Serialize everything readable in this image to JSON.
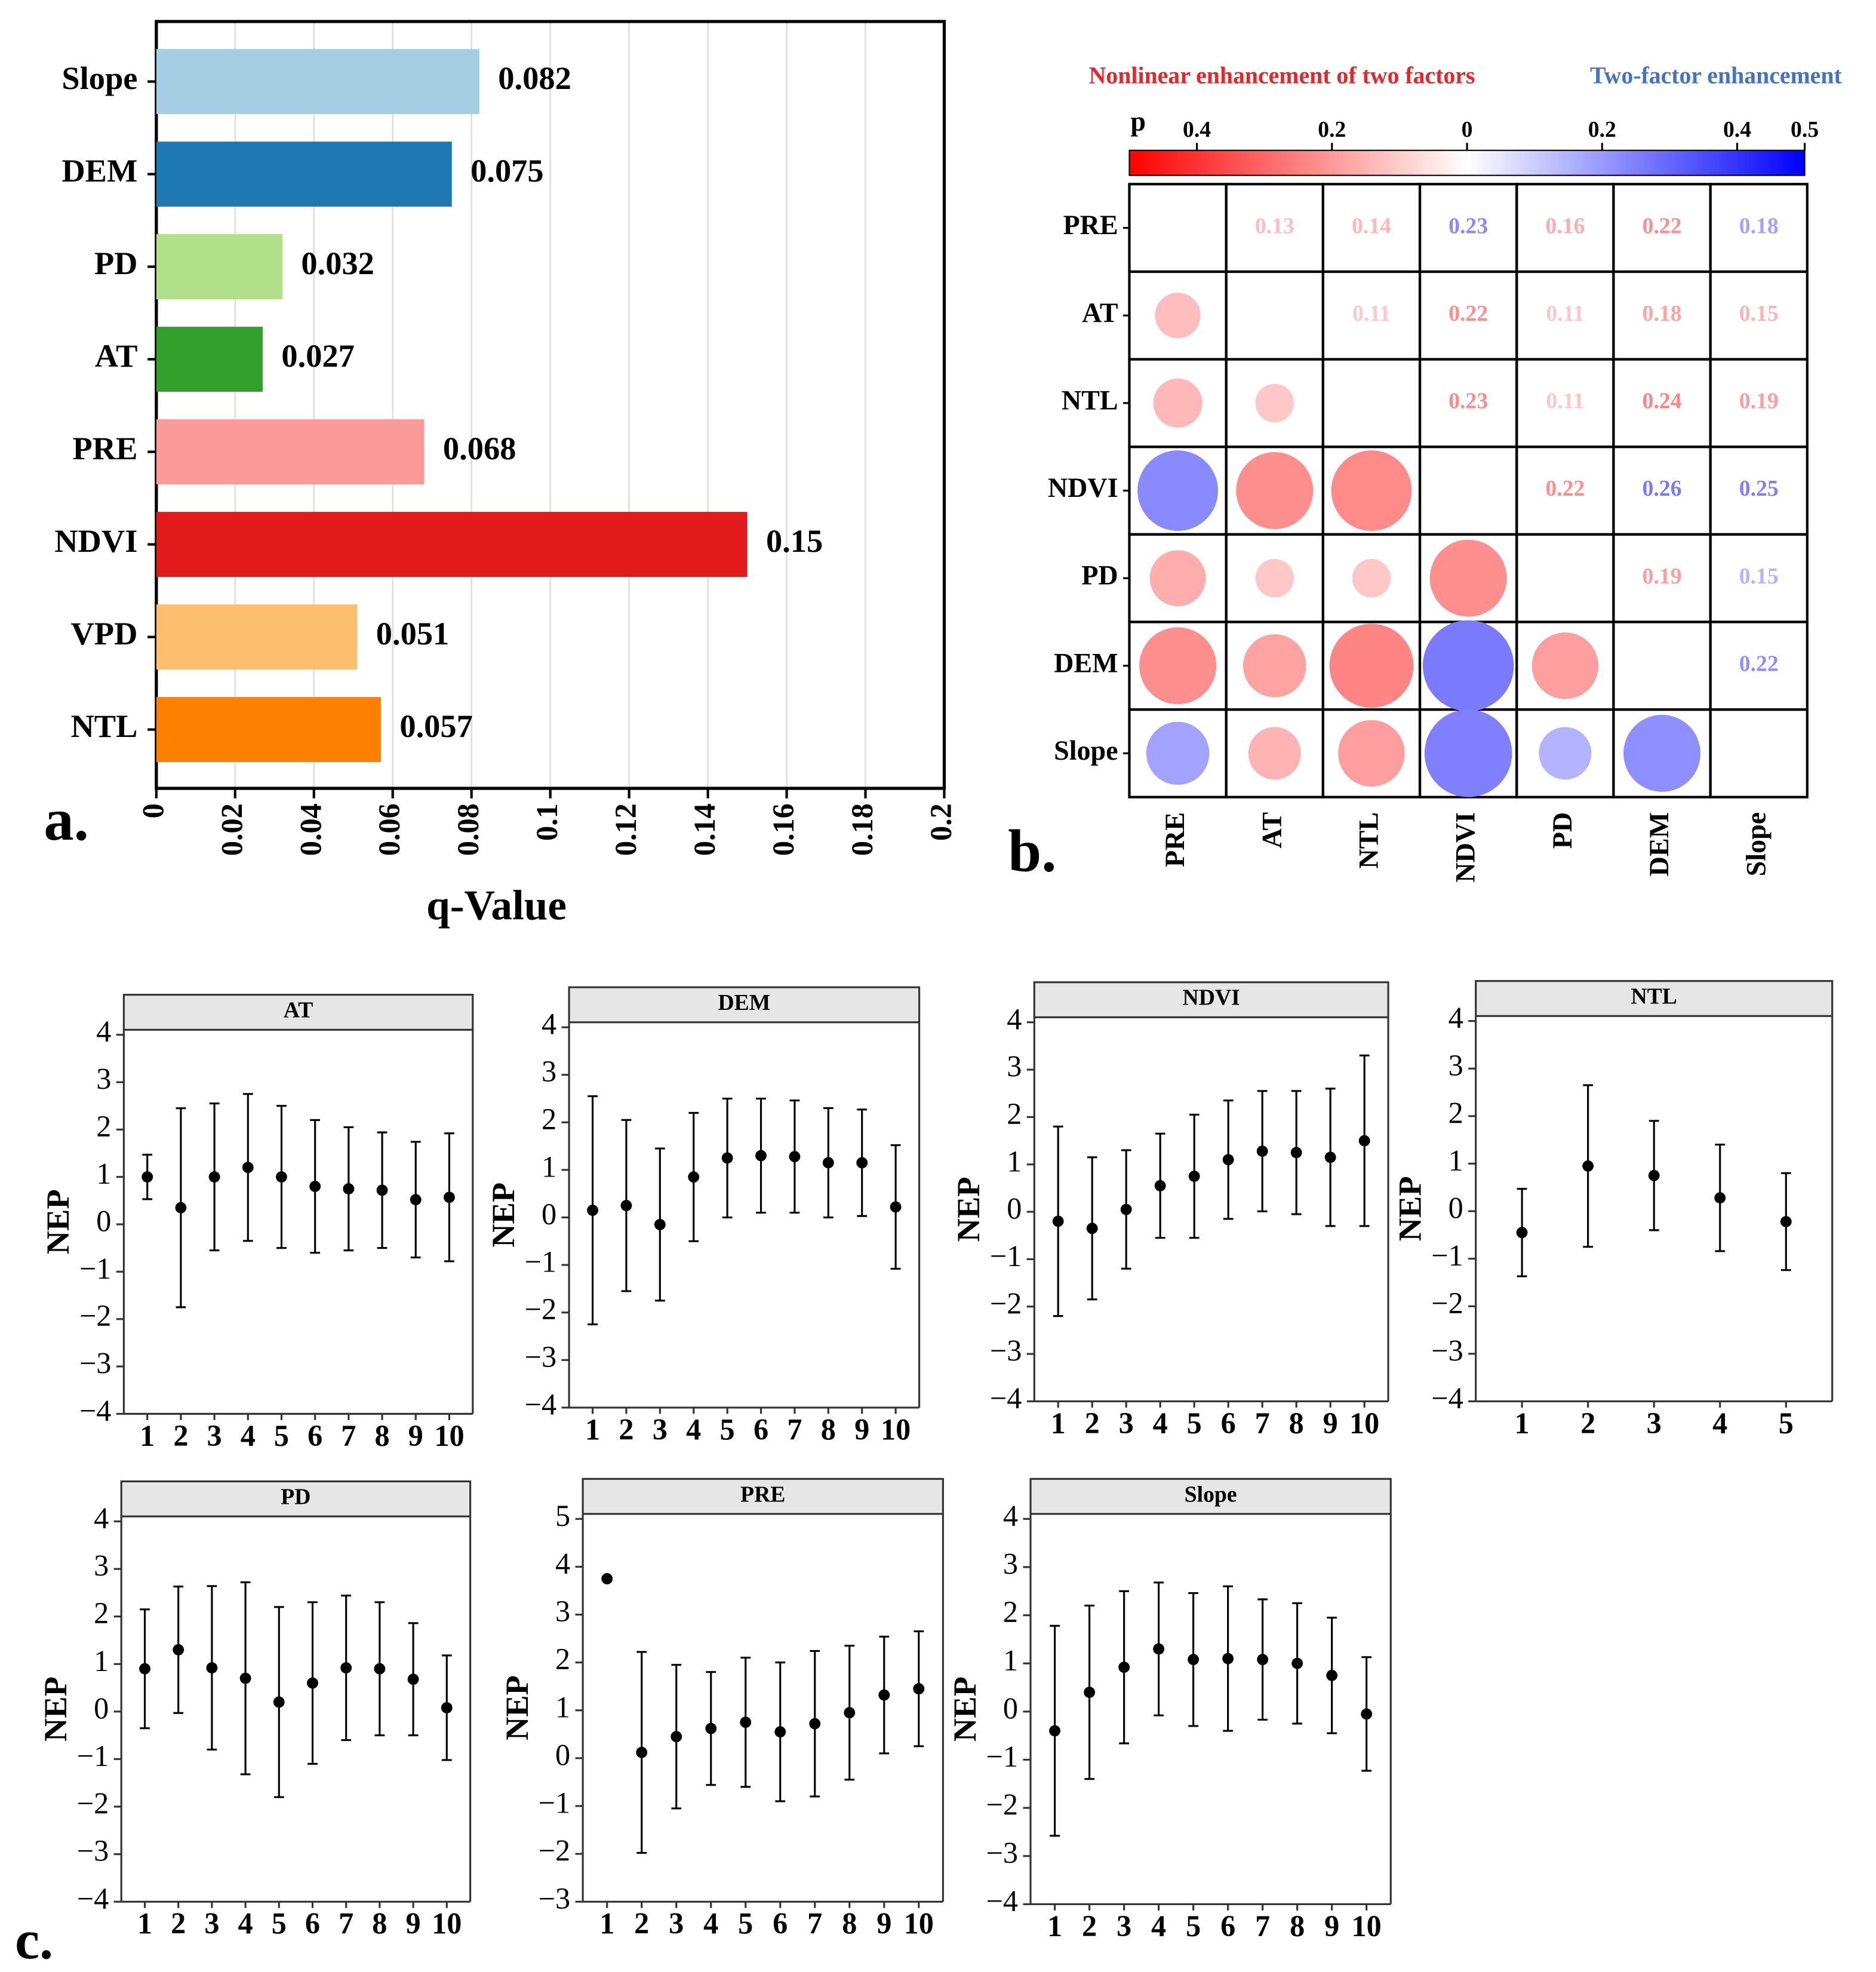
{
  "chart_data": [
    {
      "type": "bar",
      "orientation": "horizontal",
      "panel_label": "a.",
      "x_label": "q-Value",
      "categories": [
        "Slope",
        "DEM",
        "PD",
        "AT",
        "PRE",
        "NDVI",
        "VPD",
        "NTL"
      ],
      "values": [
        0.082,
        0.075,
        0.032,
        0.027,
        0.068,
        0.15,
        0.051,
        0.057
      ],
      "colors": [
        "#a6cee3",
        "#1f78b4",
        "#b2df8a",
        "#33a02c",
        "#fb9a99",
        "#e31a1c",
        "#fdbf6f",
        "#ff7f00"
      ],
      "xlim": [
        0,
        0.2
      ],
      "xticks": [
        0,
        0.02,
        0.04,
        0.06,
        0.08,
        0.1,
        0.12,
        0.14,
        0.16,
        0.18,
        0.2
      ],
      "grid": true
    },
    {
      "type": "matrix",
      "panel_label": "b.",
      "title_left": "Nonlinear enhancement of two factors",
      "title_right": "Two-factor enhancement",
      "colorbar_label": "p",
      "clim": [
        -0.5,
        0.5
      ],
      "colors": [
        "#ff0000",
        "#ffffff",
        "#0000ff"
      ],
      "cticks": [
        {
          "value": -0.4,
          "label": "0.4"
        },
        {
          "value": -0.2,
          "label": "0.2"
        },
        0,
        0.2,
        0.4,
        0.5
      ],
      "factors": [
        "PRE",
        "AT",
        "NTL",
        "NDVI",
        "PD",
        "DEM",
        "Slope"
      ],
      "values": [
        [
          null,
          -0.13,
          -0.14,
          0.23,
          -0.16,
          -0.22,
          0.18
        ],
        [
          null,
          null,
          -0.11,
          -0.22,
          -0.11,
          -0.18,
          -0.15
        ],
        [
          null,
          null,
          null,
          -0.23,
          -0.11,
          -0.24,
          -0.19
        ],
        [
          null,
          null,
          null,
          null,
          -0.22,
          0.26,
          0.25
        ],
        [
          null,
          null,
          null,
          null,
          null,
          -0.19,
          0.15
        ],
        [
          null,
          null,
          null,
          null,
          null,
          null,
          0.22
        ],
        [
          null,
          null,
          null,
          null,
          null,
          null,
          null
        ]
      ],
      "value_labels": [
        [
          null,
          "0.13",
          "0.14",
          "0.23",
          "0.16",
          "0.22",
          "0.18"
        ],
        [
          null,
          null,
          "0.11",
          "0.22",
          "0.11",
          "0.18",
          "0.15"
        ],
        [
          null,
          null,
          null,
          "0.23",
          "0.11",
          "0.24",
          "0.19"
        ],
        [
          null,
          null,
          null,
          null,
          "0.22",
          "0.26",
          "0.25"
        ],
        [
          null,
          null,
          null,
          null,
          null,
          "0.19",
          "0.15"
        ],
        [
          null,
          null,
          null,
          null,
          null,
          null,
          "0.22"
        ],
        [
          null,
          null,
          null,
          null,
          null,
          null,
          null
        ]
      ]
    },
    {
      "type": "errorbar",
      "title": "AT",
      "y_label": "NEP",
      "x": [
        1,
        2,
        3,
        4,
        5,
        6,
        7,
        8,
        9,
        10
      ],
      "xlim": [
        0.3,
        10.7
      ],
      "xticks": [
        1,
        2,
        3,
        4,
        5,
        6,
        7,
        8,
        9,
        10
      ],
      "values": [
        1.0,
        0.35,
        1.0,
        1.2,
        1.0,
        0.8,
        0.75,
        0.72,
        0.52,
        0.57
      ],
      "errors": [
        0.47,
        2.1,
        1.55,
        1.55,
        1.5,
        1.4,
        1.3,
        1.22,
        1.22,
        1.35
      ],
      "ylim": [
        -4,
        4
      ],
      "yticks": [
        {
          "value": -4,
          "label": "−4"
        },
        {
          "value": -3,
          "label": "−3"
        },
        {
          "value": -2,
          "label": "−2"
        },
        {
          "value": -1,
          "label": "−1"
        },
        0,
        1,
        2,
        3,
        4
      ]
    },
    {
      "type": "errorbar",
      "title": "DEM",
      "y_label": "NEP",
      "x": [
        1,
        2,
        3,
        4,
        5,
        6,
        7,
        8,
        9,
        10
      ],
      "xlim": [
        0.3,
        10.7
      ],
      "xticks": [
        1,
        2,
        3,
        4,
        5,
        6,
        7,
        8,
        9,
        10
      ],
      "values": [
        0.15,
        0.25,
        -0.15,
        0.85,
        1.25,
        1.3,
        1.28,
        1.15,
        1.15,
        0.22
      ],
      "errors": [
        2.4,
        1.8,
        1.6,
        1.35,
        1.25,
        1.2,
        1.18,
        1.15,
        1.12,
        1.3
      ],
      "ylim": [
        -4,
        4
      ],
      "yticks": [
        {
          "value": -4,
          "label": "−4"
        },
        {
          "value": -3,
          "label": "−3"
        },
        {
          "value": -2,
          "label": "−2"
        },
        {
          "value": -1,
          "label": "−1"
        },
        0,
        1,
        2,
        3,
        4
      ]
    },
    {
      "type": "errorbar",
      "title": "NDVI",
      "y_label": "NEP",
      "x": [
        1,
        2,
        3,
        4,
        5,
        6,
        7,
        8,
        9,
        10
      ],
      "xlim": [
        0.3,
        10.7
      ],
      "xticks": [
        1,
        2,
        3,
        4,
        5,
        6,
        7,
        8,
        9,
        10
      ],
      "values": [
        -0.2,
        -0.35,
        0.05,
        0.55,
        0.75,
        1.1,
        1.28,
        1.25,
        1.15,
        1.5
      ],
      "errors": [
        2.0,
        1.5,
        1.25,
        1.1,
        1.3,
        1.25,
        1.27,
        1.3,
        1.45,
        1.8
      ],
      "ylim": [
        -4,
        4
      ],
      "yticks": [
        {
          "value": -4,
          "label": "−4"
        },
        {
          "value": -3,
          "label": "−3"
        },
        {
          "value": -2,
          "label": "−2"
        },
        {
          "value": -1,
          "label": "−1"
        },
        0,
        1,
        2,
        3,
        4
      ]
    },
    {
      "type": "errorbar",
      "title": "NTL",
      "y_label": "NEP",
      "x": [
        1,
        2,
        3,
        4,
        5
      ],
      "xlim": [
        0.3,
        5.7
      ],
      "xticks": [
        1,
        2,
        3,
        4,
        5
      ],
      "values": [
        -0.45,
        0.95,
        0.75,
        0.28,
        -0.22
      ],
      "errors": [
        0.92,
        1.7,
        1.15,
        1.12,
        1.02
      ],
      "ylim": [
        -4,
        4
      ],
      "yticks": [
        {
          "value": -4,
          "label": "−4"
        },
        {
          "value": -3,
          "label": "−3"
        },
        {
          "value": -2,
          "label": "−2"
        },
        {
          "value": -1,
          "label": "−1"
        },
        0,
        1,
        2,
        3,
        4
      ]
    },
    {
      "type": "errorbar",
      "title": "PD",
      "y_label": "NEP",
      "panel_label": "c.",
      "x": [
        1,
        2,
        3,
        4,
        5,
        6,
        7,
        8,
        9,
        10
      ],
      "xlim": [
        0.3,
        10.7
      ],
      "xticks": [
        1,
        2,
        3,
        4,
        5,
        6,
        7,
        8,
        9,
        10
      ],
      "values": [
        0.9,
        1.3,
        0.92,
        0.7,
        0.2,
        0.6,
        0.92,
        0.9,
        0.68,
        0.08
      ],
      "errors": [
        1.25,
        1.33,
        1.72,
        2.02,
        2.0,
        1.7,
        1.52,
        1.4,
        1.18,
        1.1
      ],
      "ylim": [
        -4,
        4
      ],
      "yticks": [
        {
          "value": -4,
          "label": "−4"
        },
        {
          "value": -3,
          "label": "−3"
        },
        {
          "value": -2,
          "label": "−2"
        },
        {
          "value": -1,
          "label": "−1"
        },
        0,
        1,
        2,
        3,
        4
      ]
    },
    {
      "type": "errorbar",
      "title": "PRE",
      "y_label": "NEP",
      "x": [
        1,
        2,
        3,
        4,
        5,
        6,
        7,
        8,
        9,
        10
      ],
      "xlim": [
        0.3,
        10.7
      ],
      "xticks": [
        1,
        2,
        3,
        4,
        5,
        6,
        7,
        8,
        9,
        10
      ],
      "values": [
        3.75,
        0.12,
        0.45,
        0.62,
        0.75,
        0.55,
        0.72,
        0.95,
        1.32,
        1.45
      ],
      "errors": [
        null,
        2.1,
        1.5,
        1.18,
        1.35,
        1.45,
        1.52,
        1.4,
        1.22,
        1.2
      ],
      "ylim": [
        -3,
        5
      ],
      "yticks": [
        {
          "value": -3,
          "label": "−3"
        },
        {
          "value": -2,
          "label": "−2"
        },
        {
          "value": -1,
          "label": "−1"
        },
        0,
        1,
        2,
        3,
        4,
        5
      ]
    },
    {
      "type": "errorbar",
      "title": "Slope",
      "y_label": "NEP",
      "x": [
        1,
        2,
        3,
        4,
        5,
        6,
        7,
        8,
        9,
        10
      ],
      "xlim": [
        0.3,
        10.7
      ],
      "xticks": [
        1,
        2,
        3,
        4,
        5,
        6,
        7,
        8,
        9,
        10
      ],
      "values": [
        -0.4,
        0.4,
        0.92,
        1.3,
        1.08,
        1.1,
        1.08,
        1.0,
        0.75,
        -0.05
      ],
      "errors": [
        2.18,
        1.8,
        1.58,
        1.38,
        1.38,
        1.5,
        1.25,
        1.25,
        1.2,
        1.18
      ],
      "ylim": [
        -4,
        4
      ],
      "yticks": [
        {
          "value": -4,
          "label": "−4"
        },
        {
          "value": -3,
          "label": "−3"
        },
        {
          "value": -2,
          "label": "−2"
        },
        {
          "value": -1,
          "label": "−1"
        },
        0,
        1,
        2,
        3,
        4
      ]
    }
  ]
}
